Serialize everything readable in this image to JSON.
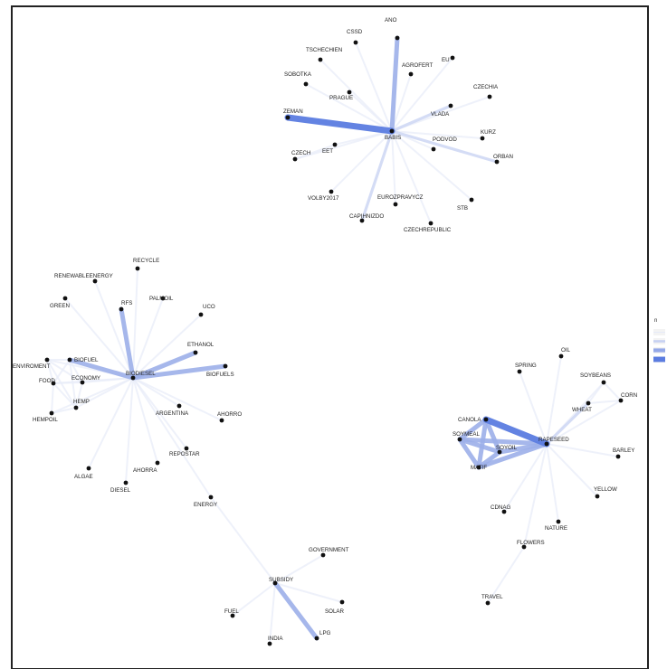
{
  "legend": {
    "title": "n",
    "colors": [
      "#e6ebf8",
      "#c7d2f2",
      "#94a8e8",
      "#5b7ce0"
    ]
  },
  "colors": {
    "border": "#222222",
    "node": "#111111",
    "edge_scale": [
      "#e8ecf8",
      "#cdd6f3",
      "#9cafe9",
      "#5b7ce0"
    ]
  },
  "graph": {
    "nodes": [
      {
        "id": "BABIS",
        "label": "BABIS"
      },
      {
        "id": "ANO",
        "label": "ANO"
      },
      {
        "id": "CSSD",
        "label": "CSSD"
      },
      {
        "id": "TSCHECHIEN",
        "label": "TSCHECHIEN"
      },
      {
        "id": "AGROFERT",
        "label": "AGROFERT"
      },
      {
        "id": "EU",
        "label": "EU"
      },
      {
        "id": "SOBOTKA",
        "label": "SOBOTKA"
      },
      {
        "id": "PRAGUE",
        "label": "PRAGUE"
      },
      {
        "id": "CZECHIA",
        "label": "CZECHIA"
      },
      {
        "id": "VLADA",
        "label": "VLADA"
      },
      {
        "id": "ZEMAN",
        "label": "ZEMAN"
      },
      {
        "id": "KURZ",
        "label": "KURZ"
      },
      {
        "id": "EET",
        "label": "EET"
      },
      {
        "id": "CZECH",
        "label": "CZECH"
      },
      {
        "id": "PODVOD",
        "label": "PODVOD"
      },
      {
        "id": "ORBAN",
        "label": "ORBAN"
      },
      {
        "id": "VOLBY2017",
        "label": "VOLBY2017"
      },
      {
        "id": "EUROZPRAVYCZ",
        "label": "EUROZPRAVYCZ"
      },
      {
        "id": "STB",
        "label": "STB"
      },
      {
        "id": "CAPIHNIZDO",
        "label": "CAPIHNIZDO"
      },
      {
        "id": "CZECHREPUBLIC",
        "label": "CZECHREPUBLIC"
      },
      {
        "id": "BIODIESEL",
        "label": "BIODIESEL"
      },
      {
        "id": "RECYCLE",
        "label": "RECYCLE"
      },
      {
        "id": "RENEWABLEENERGY",
        "label": "RENEWABLEENERGY"
      },
      {
        "id": "RFS",
        "label": "RFS"
      },
      {
        "id": "PALMOIL",
        "label": "PALMOIL"
      },
      {
        "id": "GREEN",
        "label": "GREEN"
      },
      {
        "id": "UCO",
        "label": "UCO"
      },
      {
        "id": "ETHANOL",
        "label": "ETHANOL"
      },
      {
        "id": "BIOFUEL",
        "label": "BIOFUEL"
      },
      {
        "id": "ENVIROMENT",
        "label": "ENVIROMENT"
      },
      {
        "id": "BIOFUELS",
        "label": "BIOFUELS"
      },
      {
        "id": "ECONOMY",
        "label": "ECONOMY"
      },
      {
        "id": "FOOD",
        "label": "FOOD"
      },
      {
        "id": "HEMP",
        "label": "HEMP"
      },
      {
        "id": "HEMPOIL",
        "label": "HEMPOIL"
      },
      {
        "id": "ARGENTINA",
        "label": "ARGENTINA"
      },
      {
        "id": "AHORRO",
        "label": "AHORRO"
      },
      {
        "id": "REPOSTAR",
        "label": "REPOSTAR"
      },
      {
        "id": "AHORRA",
        "label": "AHORRA"
      },
      {
        "id": "ALGAE",
        "label": "ALGAE"
      },
      {
        "id": "DIESEL",
        "label": "DIESEL"
      },
      {
        "id": "ENERGY",
        "label": "ENERGY"
      },
      {
        "id": "SUBSIDY",
        "label": "SUBSIDY"
      },
      {
        "id": "GOVERNMENT",
        "label": "GOVERNMENT"
      },
      {
        "id": "FUEL",
        "label": "FUEL"
      },
      {
        "id": "SOLAR",
        "label": "SOLAR"
      },
      {
        "id": "INDIA",
        "label": "INDIA"
      },
      {
        "id": "LPG",
        "label": "LPG"
      },
      {
        "id": "RAPESEED",
        "label": "RAPESEED"
      },
      {
        "id": "OIL",
        "label": "OIL"
      },
      {
        "id": "SPRING",
        "label": "SPRING"
      },
      {
        "id": "SOYBEANS",
        "label": "SOYBEANS"
      },
      {
        "id": "CORN",
        "label": "CORN"
      },
      {
        "id": "WHEAT",
        "label": "WHEAT"
      },
      {
        "id": "CANOLA",
        "label": "CANOLA"
      },
      {
        "id": "SOYMEAL",
        "label": "SOYMEAL"
      },
      {
        "id": "SOYOIL",
        "label": "SOYOIL"
      },
      {
        "id": "BARLEY",
        "label": "BARLEY"
      },
      {
        "id": "MATIF",
        "label": "MATIF"
      },
      {
        "id": "YELLOW",
        "label": "YELLOW"
      },
      {
        "id": "CDNAG",
        "label": "CDNAG"
      },
      {
        "id": "NATURE",
        "label": "NATURE"
      },
      {
        "id": "FLOWERS",
        "label": "FLOWERS"
      },
      {
        "id": "TRAVEL",
        "label": "TRAVEL"
      }
    ],
    "edges": [
      [
        "BABIS",
        "ANO",
        3
      ],
      [
        "BABIS",
        "ZEMAN",
        4
      ],
      [
        "BABIS",
        "CAPIHNIZDO",
        2
      ],
      [
        "BABIS",
        "CSSD",
        1
      ],
      [
        "BABIS",
        "TSCHECHIEN",
        1
      ],
      [
        "BABIS",
        "AGROFERT",
        1
      ],
      [
        "BABIS",
        "EU",
        1
      ],
      [
        "BABIS",
        "SOBOTKA",
        1
      ],
      [
        "BABIS",
        "PRAGUE",
        1
      ],
      [
        "BABIS",
        "CZECHIA",
        1
      ],
      [
        "BABIS",
        "VLADA",
        2
      ],
      [
        "BABIS",
        "KURZ",
        1
      ],
      [
        "BABIS",
        "EET",
        1
      ],
      [
        "BABIS",
        "CZECH",
        1
      ],
      [
        "BABIS",
        "PODVOD",
        1
      ],
      [
        "BABIS",
        "ORBAN",
        2
      ],
      [
        "BABIS",
        "VOLBY2017",
        1
      ],
      [
        "BABIS",
        "EUROZPRAVYCZ",
        1
      ],
      [
        "BABIS",
        "STB",
        1
      ],
      [
        "BABIS",
        "CZECHREPUBLIC",
        1
      ],
      [
        "EET",
        "CZECH",
        1
      ],
      [
        "BIODIESEL",
        "RFS",
        3
      ],
      [
        "BIODIESEL",
        "BIOFUELS",
        3
      ],
      [
        "BIODIESEL",
        "ETHANOL",
        3
      ],
      [
        "BIODIESEL",
        "BIOFUEL",
        3
      ],
      [
        "BIODIESEL",
        "RECYCLE",
        1
      ],
      [
        "BIODIESEL",
        "RENEWABLEENERGY",
        1
      ],
      [
        "BIODIESEL",
        "PALMOIL",
        1
      ],
      [
        "BIODIESEL",
        "GREEN",
        1
      ],
      [
        "BIODIESEL",
        "UCO",
        1
      ],
      [
        "BIODIESEL",
        "ENVIROMENT",
        1
      ],
      [
        "BIODIESEL",
        "ECONOMY",
        1
      ],
      [
        "BIODIESEL",
        "FOOD",
        1
      ],
      [
        "BIODIESEL",
        "HEMP",
        1
      ],
      [
        "BIODIESEL",
        "HEMPOIL",
        1
      ],
      [
        "BIODIESEL",
        "ARGENTINA",
        1
      ],
      [
        "BIODIESEL",
        "AHORRO",
        1
      ],
      [
        "BIODIESEL",
        "REPOSTAR",
        1
      ],
      [
        "BIODIESEL",
        "AHORRA",
        1
      ],
      [
        "BIODIESEL",
        "ALGAE",
        1
      ],
      [
        "BIODIESEL",
        "DIESEL",
        1
      ],
      [
        "BIODIESEL",
        "ENERGY",
        1
      ],
      [
        "ENVIROMENT",
        "BIOFUEL",
        1
      ],
      [
        "ENVIROMENT",
        "FOOD",
        1
      ],
      [
        "ENVIROMENT",
        "HEMP",
        1
      ],
      [
        "ENVIROMENT",
        "ECONOMY",
        1
      ],
      [
        "BIOFUEL",
        "FOOD",
        1
      ],
      [
        "BIOFUEL",
        "ECONOMY",
        1
      ],
      [
        "BIOFUEL",
        "HEMP",
        1
      ],
      [
        "FOOD",
        "ECONOMY",
        1
      ],
      [
        "FOOD",
        "HEMP",
        1
      ],
      [
        "FOOD",
        "HEMPOIL",
        1
      ],
      [
        "HEMP",
        "HEMPOIL",
        1
      ],
      [
        "ECONOMY",
        "HEMP",
        1
      ],
      [
        "ENERGY",
        "SUBSIDY",
        1
      ],
      [
        "SUBSIDY",
        "LPG",
        3
      ],
      [
        "SUBSIDY",
        "GOVERNMENT",
        1
      ],
      [
        "SUBSIDY",
        "FUEL",
        1
      ],
      [
        "SUBSIDY",
        "SOLAR",
        1
      ],
      [
        "SUBSIDY",
        "INDIA",
        1
      ],
      [
        "RAPESEED",
        "CANOLA",
        4
      ],
      [
        "RAPESEED",
        "SOYMEAL",
        3
      ],
      [
        "RAPESEED",
        "SOYOIL",
        3
      ],
      [
        "RAPESEED",
        "MATIF",
        3
      ],
      [
        "CANOLA",
        "SOYMEAL",
        3
      ],
      [
        "CANOLA",
        "SOYOIL",
        3
      ],
      [
        "CANOLA",
        "MATIF",
        3
      ],
      [
        "SOYMEAL",
        "SOYOIL",
        3
      ],
      [
        "SOYMEAL",
        "MATIF",
        3
      ],
      [
        "SOYOIL",
        "MATIF",
        3
      ],
      [
        "RAPESEED",
        "WHEAT",
        2
      ],
      [
        "RAPESEED",
        "CORN",
        1
      ],
      [
        "RAPESEED",
        "OIL",
        1
      ],
      [
        "RAPESEED",
        "SPRING",
        1
      ],
      [
        "RAPESEED",
        "SOYBEANS",
        1
      ],
      [
        "RAPESEED",
        "BARLEY",
        1
      ],
      [
        "RAPESEED",
        "YELLOW",
        1
      ],
      [
        "RAPESEED",
        "CDNAG",
        1
      ],
      [
        "RAPESEED",
        "NATURE",
        1
      ],
      [
        "RAPESEED",
        "FLOWERS",
        1
      ],
      [
        "WHEAT",
        "CORN",
        1
      ],
      [
        "WHEAT",
        "SOYBEANS",
        1
      ],
      [
        "SOYBEANS",
        "CORN",
        1
      ],
      [
        "FLOWERS",
        "TRAVEL",
        1
      ]
    ]
  }
}
